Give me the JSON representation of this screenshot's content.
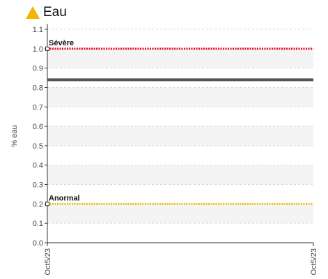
{
  "header": {
    "title": "Eau",
    "icon": "warning-triangle-icon",
    "icon_color": "#f5b400"
  },
  "chart_data": {
    "type": "line",
    "ylabel": "% eau",
    "xlabel": "",
    "ylim": [
      0.0,
      1.1
    ],
    "y_ticks": [
      "0.0",
      "0.1",
      "0.2",
      "0.3",
      "0.4",
      "0.5",
      "0.6",
      "0.7",
      "0.8",
      "0.9",
      "1.0",
      "1.1"
    ],
    "x_ticks": [
      "Oct5/23",
      "Oct5/23"
    ],
    "grid": true,
    "series": [
      {
        "values": [
          0.84,
          0.84
        ],
        "color": "#555555",
        "style": "solid"
      }
    ],
    "thresholds": [
      {
        "name": "Sévère",
        "value": 1.0,
        "color": "#e8102a",
        "style": "dotted"
      },
      {
        "name": "Anormal",
        "value": 0.2,
        "color": "#f0c419",
        "style": "dotted"
      }
    ]
  }
}
